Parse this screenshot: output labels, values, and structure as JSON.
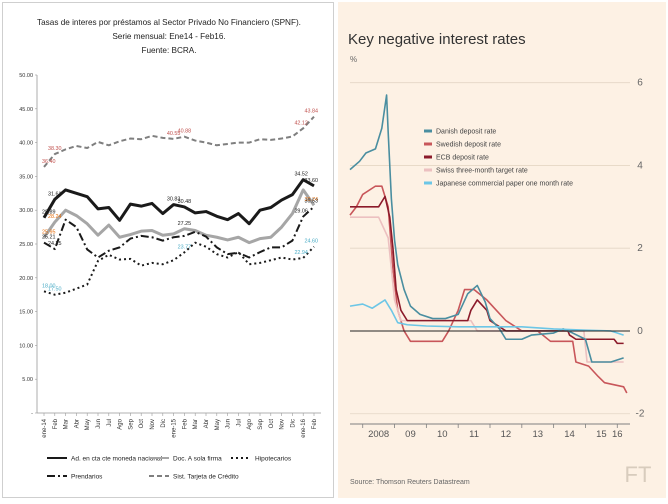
{
  "charts": [
    {
      "type": "line",
      "title_lines": [
        "Tasas de interes por préstamos al Sector Privado No Financiero (SPNF).",
        "Serie mensual: Ene14 - Feb16.",
        "Fuente: BCRA."
      ],
      "ylim": [
        0,
        50
      ],
      "yticks": [
        "-",
        "5.00",
        "10.00",
        "15.00",
        "20.00",
        "25.00",
        "30.00",
        "35.00",
        "40.00",
        "45.00",
        "50.00"
      ],
      "categories": [
        "ene-14",
        "Feb",
        "Mar",
        "Abr",
        "May",
        "Jun",
        "Jul",
        "Ago",
        "Sep",
        "Oct",
        "Nov",
        "Dic",
        "ene-15",
        "Feb",
        "Mar",
        "Abr",
        "May",
        "Jun",
        "Jul",
        "Ago",
        "Sep",
        "Oct",
        "Nov",
        "Dic",
        "ene-16",
        "Feb"
      ],
      "series": [
        {
          "name": "Ad. en cta cte moneda nacional",
          "color": "#1a1a1a",
          "dash": "none",
          "width": 3,
          "values": [
            28.89,
            31.61,
            33.0,
            32.5,
            32.0,
            30.2,
            30.4,
            28.5,
            30.9,
            30.6,
            31.0,
            29.5,
            30.83,
            30.48,
            29.6,
            29.8,
            29.1,
            28.6,
            29.5,
            28.0,
            30.0,
            30.4,
            31.5,
            32.3,
            34.52,
            33.6
          ]
        },
        {
          "name": "Doc. A sola firma",
          "color": "#a6a6a6",
          "dash": "none",
          "width": 3,
          "values": [
            25.95,
            28.24,
            30.0,
            29.2,
            28.0,
            26.3,
            27.8,
            26.0,
            26.4,
            26.9,
            27.0,
            26.3,
            26.5,
            27.25,
            27.0,
            26.3,
            26.0,
            25.6,
            26.0,
            25.2,
            25.8,
            26.0,
            27.5,
            29.5,
            33.0,
            30.74
          ]
        },
        {
          "name": "Hipotecarios",
          "color": "#1a1a1a",
          "dash": "2,3",
          "width": 2,
          "values": [
            18.0,
            17.5,
            17.8,
            18.4,
            19.0,
            22.5,
            23.4,
            22.7,
            22.8,
            21.8,
            22.2,
            22.0,
            22.6,
            23.77,
            25.2,
            24.6,
            23.5,
            23.0,
            23.8,
            22.0,
            22.2,
            22.6,
            23.0,
            22.7,
            22.94,
            24.6
          ]
        },
        {
          "name": "Prendarios",
          "color": "#1a1a1a",
          "dash": "8,3,2,3",
          "width": 2,
          "values": [
            25.21,
            24.25,
            28.6,
            27.5,
            24.2,
            23.0,
            24.0,
            24.5,
            25.8,
            26.2,
            26.0,
            25.5,
            26.0,
            26.2,
            26.8,
            26.1,
            24.5,
            23.5,
            23.7,
            23.0,
            23.8,
            24.5,
            24.5,
            25.5,
            29.06,
            30.53
          ]
        },
        {
          "name": "Sist. Tarjeta de Crédito",
          "color": "#7f7f7f",
          "dash": "5,3",
          "width": 2,
          "values": [
            36.4,
            38.3,
            39.0,
            39.5,
            39.2,
            40.1,
            39.6,
            40.2,
            40.6,
            40.5,
            41.0,
            40.7,
            40.55,
            40.88,
            40.3,
            40.0,
            39.6,
            39.8,
            40.0,
            40.0,
            40.5,
            40.4,
            40.6,
            40.9,
            42.12,
            43.84
          ]
        }
      ],
      "data_labels": [
        {
          "text": "36.40",
          "series": 4,
          "index": 0,
          "color": "#c0504d"
        },
        {
          "text": "38.30",
          "series": 4,
          "index": 1,
          "color": "#c0504d"
        },
        {
          "text": "40.55",
          "series": 4,
          "index": 12,
          "color": "#c0504d"
        },
        {
          "text": "40.88",
          "series": 4,
          "index": 13,
          "color": "#c0504d"
        },
        {
          "text": "42.12",
          "series": 4,
          "index": 24,
          "color": "#c0504d"
        },
        {
          "text": "43.84",
          "series": 4,
          "index": 25,
          "color": "#c0504d"
        },
        {
          "text": "31.61",
          "series": 0,
          "index": 1,
          "color": "#1a1a1a"
        },
        {
          "text": "28.89",
          "series": 0,
          "index": 0,
          "color": "#1a1a1a"
        },
        {
          "text": "30.83",
          "series": 0,
          "index": 12,
          "color": "#1a1a1a"
        },
        {
          "text": "30.48",
          "series": 0,
          "index": 13,
          "color": "#1a1a1a"
        },
        {
          "text": "34.52",
          "series": 0,
          "index": 24,
          "color": "#1a1a1a"
        },
        {
          "text": "33.60",
          "series": 0,
          "index": 25,
          "color": "#1a1a1a"
        },
        {
          "text": "28.24",
          "series": 1,
          "index": 1,
          "color": "#e46c0a"
        },
        {
          "text": "25.95",
          "series": 1,
          "index": 0,
          "color": "#e46c0a"
        },
        {
          "text": "27.25",
          "series": 1,
          "index": 13,
          "color": "#1a1a1a"
        },
        {
          "text": "30.74",
          "series": 1,
          "index": 25,
          "color": "#e46c0a"
        },
        {
          "text": "25.21",
          "series": 3,
          "index": 0,
          "color": "#1a1a1a"
        },
        {
          "text": "24.25",
          "series": 3,
          "index": 1,
          "color": "#1a1a1a"
        },
        {
          "text": "29.06",
          "series": 3,
          "index": 24,
          "color": "#1a1a1a"
        },
        {
          "text": "30.53",
          "series": 3,
          "index": 25,
          "color": "#1a1a1a"
        },
        {
          "text": "18.00",
          "series": 2,
          "index": 0,
          "color": "#4bacc6"
        },
        {
          "text": "17.50",
          "series": 2,
          "index": 1,
          "color": "#4bacc6"
        },
        {
          "text": "23.77",
          "series": 2,
          "index": 13,
          "color": "#4bacc6"
        },
        {
          "text": "22.94",
          "series": 2,
          "index": 24,
          "color": "#4bacc6"
        },
        {
          "text": "24.60",
          "series": 2,
          "index": 25,
          "color": "#4bacc6"
        }
      ],
      "legend_position": "bottom"
    },
    {
      "type": "line",
      "title": "Key negative interest rates",
      "ylabel": "%",
      "ylim": [
        -2.2,
        6.5
      ],
      "yticks": [
        "-2",
        "0",
        "2",
        "4",
        "6"
      ],
      "xticks": [
        {
          "label": "2008",
          "x": 2008.5
        },
        {
          "label": "09",
          "x": 2009.5
        },
        {
          "label": "10",
          "x": 2010.5
        },
        {
          "label": "11",
          "x": 2011.5
        },
        {
          "label": "12",
          "x": 2012.5
        },
        {
          "label": "13",
          "x": 2013.5
        },
        {
          "label": "14",
          "x": 2014.5
        },
        {
          "label": "15",
          "x": 2015.5
        },
        {
          "label": "16",
          "x": 2016.0
        }
      ],
      "xlim": [
        2007.6,
        2016.4
      ],
      "source": "Source: Thomson Reuters Datastream",
      "watermark": "FT",
      "legend_position": "top",
      "series": [
        {
          "name": "Danish deposit rate",
          "color": "#4a8ea0",
          "points": [
            [
              2007.6,
              3.9
            ],
            [
              2007.9,
              4.1
            ],
            [
              2008.1,
              4.3
            ],
            [
              2008.4,
              4.4
            ],
            [
              2008.6,
              4.9
            ],
            [
              2008.75,
              5.7
            ],
            [
              2008.8,
              4.8
            ],
            [
              2008.9,
              3.2
            ],
            [
              2009.0,
              2.2
            ],
            [
              2009.1,
              1.6
            ],
            [
              2009.3,
              1.0
            ],
            [
              2009.5,
              0.6
            ],
            [
              2009.8,
              0.4
            ],
            [
              2010.2,
              0.3
            ],
            [
              2010.6,
              0.3
            ],
            [
              2011.0,
              0.4
            ],
            [
              2011.3,
              0.9
            ],
            [
              2011.6,
              1.1
            ],
            [
              2011.85,
              0.7
            ],
            [
              2012.0,
              0.3
            ],
            [
              2012.3,
              0.05
            ],
            [
              2012.5,
              -0.2
            ],
            [
              2013.0,
              -0.2
            ],
            [
              2013.3,
              -0.1
            ],
            [
              2014.0,
              -0.05
            ],
            [
              2014.3,
              0.05
            ],
            [
              2014.6,
              -0.05
            ],
            [
              2015.0,
              -0.2
            ],
            [
              2015.2,
              -0.75
            ],
            [
              2015.5,
              -0.75
            ],
            [
              2015.8,
              -0.75
            ],
            [
              2016.2,
              -0.65
            ]
          ]
        },
        {
          "name": "Swedish deposit rate",
          "color": "#c8565a",
          "points": [
            [
              2007.6,
              2.8
            ],
            [
              2007.8,
              3.0
            ],
            [
              2008.0,
              3.3
            ],
            [
              2008.4,
              3.5
            ],
            [
              2008.6,
              3.5
            ],
            [
              2008.8,
              3.0
            ],
            [
              2008.95,
              1.5
            ],
            [
              2009.1,
              0.5
            ],
            [
              2009.3,
              0.0
            ],
            [
              2009.5,
              -0.25
            ],
            [
              2010.5,
              -0.25
            ],
            [
              2010.7,
              0.0
            ],
            [
              2011.0,
              0.5
            ],
            [
              2011.2,
              1.0
            ],
            [
              2011.5,
              1.0
            ],
            [
              2011.9,
              0.75
            ],
            [
              2012.2,
              0.5
            ],
            [
              2012.5,
              0.25
            ],
            [
              2013.0,
              0.0
            ],
            [
              2013.5,
              0.0
            ],
            [
              2013.9,
              -0.25
            ],
            [
              2014.6,
              -0.25
            ],
            [
              2014.7,
              -0.75
            ],
            [
              2015.1,
              -0.85
            ],
            [
              2015.4,
              -1.1
            ],
            [
              2015.6,
              -1.25
            ],
            [
              2016.2,
              -1.35
            ],
            [
              2016.3,
              -1.5
            ]
          ]
        },
        {
          "name": "ECB deposit rate",
          "color": "#8b1a2a",
          "points": [
            [
              2007.6,
              3.0
            ],
            [
              2008.5,
              3.0
            ],
            [
              2008.7,
              3.25
            ],
            [
              2008.85,
              2.75
            ],
            [
              2008.95,
              2.0
            ],
            [
              2009.05,
              1.0
            ],
            [
              2009.2,
              0.5
            ],
            [
              2009.4,
              0.25
            ],
            [
              2011.3,
              0.25
            ],
            [
              2011.4,
              0.5
            ],
            [
              2011.6,
              0.75
            ],
            [
              2011.9,
              0.5
            ],
            [
              2012.0,
              0.25
            ],
            [
              2012.5,
              0.0
            ],
            [
              2014.45,
              0.0
            ],
            [
              2014.5,
              -0.1
            ],
            [
              2014.7,
              -0.2
            ],
            [
              2015.9,
              -0.2
            ],
            [
              2016.0,
              -0.3
            ],
            [
              2016.2,
              -0.3
            ]
          ]
        },
        {
          "name": "Swiss three-month target rate",
          "color": "#ecc0c0",
          "points": [
            [
              2007.6,
              2.75
            ],
            [
              2008.0,
              2.75
            ],
            [
              2008.5,
              2.75
            ],
            [
              2008.8,
              2.25
            ],
            [
              2008.9,
              1.5
            ],
            [
              2009.0,
              0.75
            ],
            [
              2009.2,
              0.25
            ],
            [
              2009.4,
              0.25
            ],
            [
              2011.4,
              0.25
            ],
            [
              2011.6,
              0.0
            ],
            [
              2014.95,
              0.0
            ],
            [
              2015.05,
              -0.75
            ],
            [
              2016.2,
              -0.75
            ]
          ]
        },
        {
          "name": "Japanese commercial paper one month rate",
          "color": "#6cc6e6",
          "points": [
            [
              2007.6,
              0.6
            ],
            [
              2008.0,
              0.65
            ],
            [
              2008.3,
              0.55
            ],
            [
              2008.7,
              0.75
            ],
            [
              2008.9,
              0.5
            ],
            [
              2009.1,
              0.2
            ],
            [
              2009.4,
              0.15
            ],
            [
              2010.0,
              0.12
            ],
            [
              2011.0,
              0.1
            ],
            [
              2012.0,
              0.1
            ],
            [
              2013.0,
              0.1
            ],
            [
              2014.0,
              0.05
            ],
            [
              2015.0,
              0.02
            ],
            [
              2015.8,
              0.0
            ],
            [
              2016.0,
              -0.05
            ],
            [
              2016.2,
              -0.1
            ]
          ]
        }
      ]
    }
  ]
}
